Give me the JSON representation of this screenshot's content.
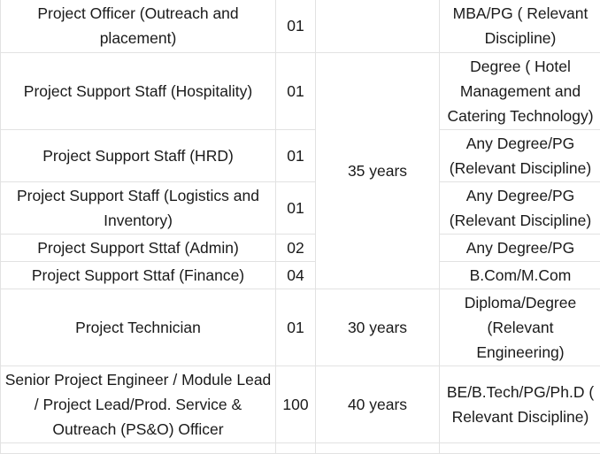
{
  "rows": [
    {
      "post": "Project Officer (Outreach and placement)",
      "count": "01",
      "qual": "MBA/PG ( Relevant Discipline)"
    },
    {
      "post": "Project Support Staff (Hospitality)",
      "count": "01",
      "qual": "Degree ( Hotel Management and Catering Technology)"
    },
    {
      "post": "Project Support Staff (HRD)",
      "count": "01",
      "qual": "Any Degree/PG (Relevant Discipline)"
    },
    {
      "post": "Project Support Staff (Logistics and Inventory)",
      "count": "01",
      "qual": "Any Degree/PG (Relevant Discipline)"
    },
    {
      "post": "Project Support Sttaf (Admin)",
      "count": "02",
      "qual": "Any Degree/PG"
    },
    {
      "post": "Project Support Sttaf (Finance)",
      "count": "04",
      "qual": "B.Com/M.Com"
    },
    {
      "post": "Project Technician",
      "count": "01",
      "qual": "Diploma/Degree (Relevant Engineering)"
    },
    {
      "post": "Senior Project Engineer / Module Lead / Project Lead/Prod. Service & Outreach (PS&O) Officer",
      "count": "100",
      "qual": "BE/B.Tech/PG/Ph.D ( Relevant Discipline)"
    }
  ],
  "age_limits": {
    "group_1": "35 years",
    "group_2": "30 years",
    "group_3": "40 years"
  }
}
